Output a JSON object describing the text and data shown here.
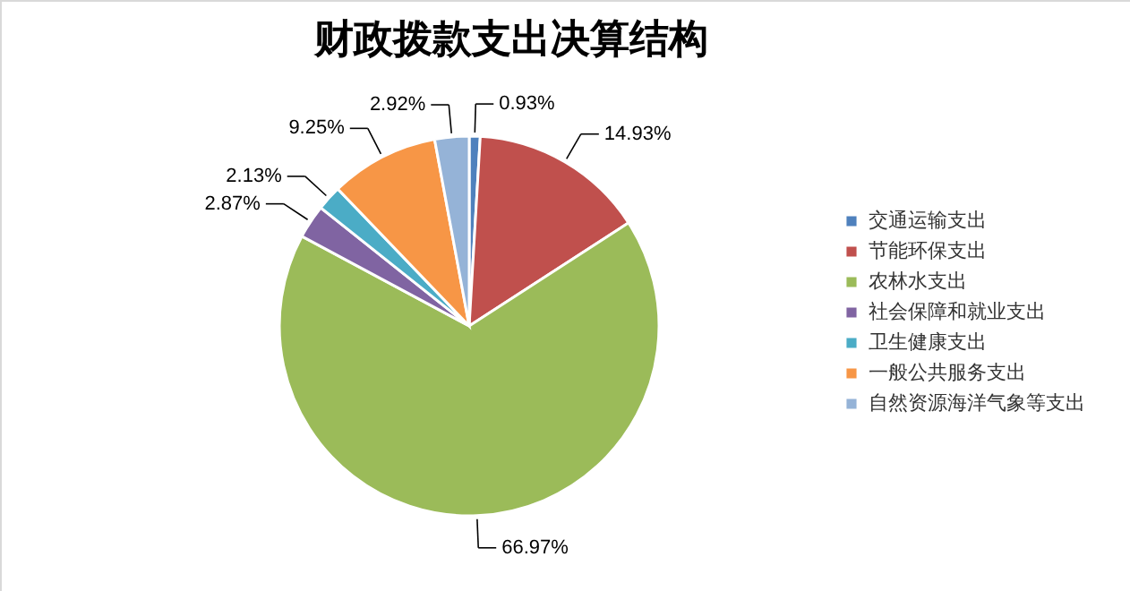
{
  "chart_data": {
    "type": "pie",
    "title": "财政拨款支出决算结构",
    "categories": [
      "交通运输支出",
      "节能环保支出",
      "农林水支出",
      "社会保障和就业支出",
      "卫生健康支出",
      "一般公共服务支出",
      "自然资源海洋气象等支出"
    ],
    "values": [
      0.93,
      14.93,
      66.97,
      2.87,
      2.13,
      9.25,
      2.92
    ],
    "value_labels": [
      "0.93%",
      "14.93%",
      "66.97%",
      "2.87%",
      "2.13%",
      "9.25%",
      "2.92%"
    ],
    "colors": [
      "#4f81bd",
      "#c0504d",
      "#9bbb59",
      "#8064a2",
      "#4bacc6",
      "#f79646",
      "#95b3d7"
    ],
    "legend": "right"
  }
}
